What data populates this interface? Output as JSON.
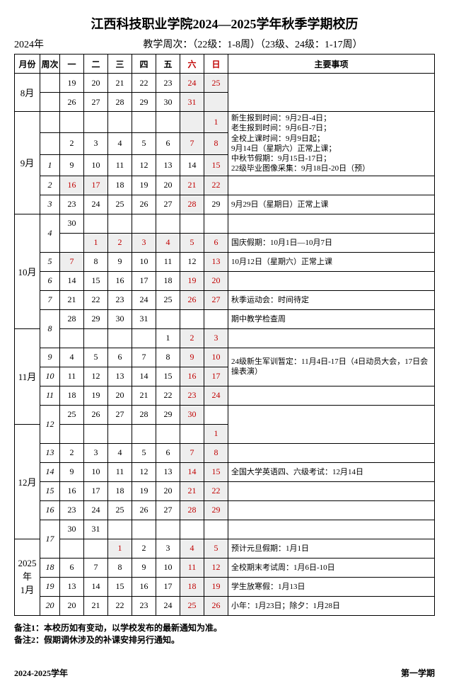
{
  "title": "江西科技职业学院2024—2025学年秋季学期校历",
  "yearLabel": "2024年",
  "subTitle": "教学周次：（22级：1-8周）（23级、24级：1-17周）",
  "headers": {
    "month": "月份",
    "week": "周次",
    "days": [
      "一",
      "二",
      "三",
      "四",
      "五",
      "六",
      "日"
    ],
    "notes": "主要事项"
  },
  "colors": {
    "weekend": "#c00000",
    "shade": "#eeeeee"
  },
  "rows": [
    {
      "month": "8月",
      "mRows": 2,
      "week": "",
      "cells": [
        {
          "t": "19"
        },
        {
          "t": "20"
        },
        {
          "t": "21"
        },
        {
          "t": "22"
        },
        {
          "t": "23"
        },
        {
          "t": "24",
          "red": 1,
          "sh": 1
        },
        {
          "t": "25",
          "red": 1,
          "sh": 1
        }
      ],
      "note": "",
      "nRows": 2
    },
    {
      "week": "",
      "cells": [
        {
          "t": "26"
        },
        {
          "t": "27"
        },
        {
          "t": "28"
        },
        {
          "t": "29"
        },
        {
          "t": "30"
        },
        {
          "t": "31",
          "red": 1,
          "sh": 1
        },
        {
          "t": "",
          "sh": 1
        }
      ]
    },
    {
      "month": "9月",
      "mRows": 5,
      "week": "",
      "cells": [
        {
          "t": ""
        },
        {
          "t": ""
        },
        {
          "t": ""
        },
        {
          "t": ""
        },
        {
          "t": ""
        },
        {
          "t": "",
          "sh": 1
        },
        {
          "t": "1",
          "red": 1,
          "sh": 1
        }
      ],
      "note": "新生报到时间：9月2日-4日；\n老生报到时间：9月6日-7日；\n全校上课时间：9月9日起；\n9月14日（星期六）正常上课；\n中秋节假期：9月15日-17日；\n22级毕业图像采集：9月18日-20日（预）",
      "nRows": 3
    },
    {
      "week": "",
      "cells": [
        {
          "t": "2"
        },
        {
          "t": "3"
        },
        {
          "t": "4"
        },
        {
          "t": "5"
        },
        {
          "t": "6"
        },
        {
          "t": "7",
          "red": 1,
          "sh": 1
        },
        {
          "t": "8",
          "red": 1,
          "sh": 1
        }
      ]
    },
    {
      "week": "1",
      "cells": [
        {
          "t": "9"
        },
        {
          "t": "10"
        },
        {
          "t": "11"
        },
        {
          "t": "12"
        },
        {
          "t": "13"
        },
        {
          "t": "14"
        },
        {
          "t": "15",
          "red": 1,
          "sh": 1
        }
      ]
    },
    {
      "week": "2",
      "cells": [
        {
          "t": "16",
          "red": 1,
          "sh": 1
        },
        {
          "t": "17",
          "red": 1,
          "sh": 1
        },
        {
          "t": "18"
        },
        {
          "t": "19"
        },
        {
          "t": "20"
        },
        {
          "t": "21",
          "red": 1,
          "sh": 1
        },
        {
          "t": "22",
          "red": 1,
          "sh": 1
        }
      ],
      "note": "",
      "nRows": 1
    },
    {
      "week": "3",
      "cells": [
        {
          "t": "23"
        },
        {
          "t": "24"
        },
        {
          "t": "25"
        },
        {
          "t": "26"
        },
        {
          "t": "27"
        },
        {
          "t": "28",
          "red": 1,
          "sh": 1
        },
        {
          "t": "29"
        }
      ],
      "note": "9月29日（星期日）正常上课",
      "nRows": 1
    },
    {
      "month": "10月",
      "mRows": 6,
      "week": "4",
      "wRows": 2,
      "cells": [
        {
          "t": "30"
        },
        {
          "t": ""
        },
        {
          "t": ""
        },
        {
          "t": ""
        },
        {
          "t": ""
        },
        {
          "t": ""
        },
        {
          "t": ""
        }
      ],
      "note": "",
      "nRows": 1
    },
    {
      "cells": [
        {
          "t": ""
        },
        {
          "t": "1",
          "red": 1,
          "sh": 1
        },
        {
          "t": "2",
          "red": 1,
          "sh": 1
        },
        {
          "t": "3",
          "red": 1,
          "sh": 1
        },
        {
          "t": "4",
          "red": 1,
          "sh": 1
        },
        {
          "t": "5",
          "red": 1,
          "sh": 1
        },
        {
          "t": "6",
          "red": 1,
          "sh": 1
        }
      ],
      "note": "国庆假期：10月1日—10月7日",
      "nRows": 1
    },
    {
      "week": "5",
      "cells": [
        {
          "t": "7",
          "red": 1,
          "sh": 1
        },
        {
          "t": "8"
        },
        {
          "t": "9"
        },
        {
          "t": "10"
        },
        {
          "t": "11"
        },
        {
          "t": "12"
        },
        {
          "t": "13",
          "red": 1,
          "sh": 1
        }
      ],
      "note": "10月12日（星期六）正常上课",
      "nRows": 1
    },
    {
      "week": "6",
      "cells": [
        {
          "t": "14"
        },
        {
          "t": "15"
        },
        {
          "t": "16"
        },
        {
          "t": "17"
        },
        {
          "t": "18"
        },
        {
          "t": "19",
          "red": 1,
          "sh": 1
        },
        {
          "t": "20",
          "red": 1,
          "sh": 1
        }
      ],
      "note": "",
      "nRows": 1
    },
    {
      "week": "7",
      "cells": [
        {
          "t": "21"
        },
        {
          "t": "22"
        },
        {
          "t": "23"
        },
        {
          "t": "24"
        },
        {
          "t": "25"
        },
        {
          "t": "26",
          "red": 1,
          "sh": 1
        },
        {
          "t": "27",
          "red": 1,
          "sh": 1
        }
      ],
      "note": "秋季运动会：时间待定",
      "nRows": 1
    },
    {
      "week": "8",
      "wRows": 2,
      "cells": [
        {
          "t": "28"
        },
        {
          "t": "29"
        },
        {
          "t": "30"
        },
        {
          "t": "31"
        },
        {
          "t": ""
        },
        {
          "t": ""
        },
        {
          "t": ""
        }
      ],
      "note": "期中教学检查周",
      "nRows": 1
    },
    {
      "month": "11月",
      "mRows": 5,
      "cells": [
        {
          "t": ""
        },
        {
          "t": ""
        },
        {
          "t": ""
        },
        {
          "t": ""
        },
        {
          "t": "1"
        },
        {
          "t": "2",
          "red": 1,
          "sh": 1
        },
        {
          "t": "3",
          "red": 1,
          "sh": 1
        }
      ],
      "note": "",
      "nRows": 1
    },
    {
      "week": "9",
      "cells": [
        {
          "t": "4"
        },
        {
          "t": "5"
        },
        {
          "t": "6"
        },
        {
          "t": "7"
        },
        {
          "t": "8"
        },
        {
          "t": "9",
          "red": 1,
          "sh": 1
        },
        {
          "t": "10",
          "red": 1,
          "sh": 1
        }
      ],
      "note": "24级新生军训暂定：11月4日-17日（4日动员大会，17日会操表演）",
      "nRows": 2
    },
    {
      "week": "10",
      "cells": [
        {
          "t": "11"
        },
        {
          "t": "12"
        },
        {
          "t": "13"
        },
        {
          "t": "14"
        },
        {
          "t": "15"
        },
        {
          "t": "16",
          "red": 1,
          "sh": 1
        },
        {
          "t": "17",
          "red": 1,
          "sh": 1
        }
      ]
    },
    {
      "week": "11",
      "cells": [
        {
          "t": "18"
        },
        {
          "t": "19"
        },
        {
          "t": "20"
        },
        {
          "t": "21"
        },
        {
          "t": "22"
        },
        {
          "t": "23",
          "red": 1,
          "sh": 1
        },
        {
          "t": "24",
          "red": 1,
          "sh": 1
        }
      ],
      "note": "",
      "nRows": 1
    },
    {
      "week": "12",
      "wRows": 2,
      "cells": [
        {
          "t": "25"
        },
        {
          "t": "26"
        },
        {
          "t": "27"
        },
        {
          "t": "28"
        },
        {
          "t": "29"
        },
        {
          "t": "30",
          "red": 1,
          "sh": 1
        },
        {
          "t": ""
        }
      ],
      "note": "",
      "nRows": 2
    },
    {
      "month": "12月",
      "mRows": 6,
      "cells": [
        {
          "t": ""
        },
        {
          "t": ""
        },
        {
          "t": ""
        },
        {
          "t": ""
        },
        {
          "t": ""
        },
        {
          "t": ""
        },
        {
          "t": "1",
          "red": 1,
          "sh": 1
        }
      ]
    },
    {
      "week": "13",
      "cells": [
        {
          "t": "2"
        },
        {
          "t": "3"
        },
        {
          "t": "4"
        },
        {
          "t": "5"
        },
        {
          "t": "6"
        },
        {
          "t": "7",
          "red": 1,
          "sh": 1
        },
        {
          "t": "8",
          "red": 1,
          "sh": 1
        }
      ],
      "note": "",
      "nRows": 1
    },
    {
      "week": "14",
      "cells": [
        {
          "t": "9"
        },
        {
          "t": "10"
        },
        {
          "t": "11"
        },
        {
          "t": "12"
        },
        {
          "t": "13"
        },
        {
          "t": "14",
          "red": 1,
          "sh": 1
        },
        {
          "t": "15",
          "red": 1,
          "sh": 1
        }
      ],
      "note": "全国大学英语四、六级考试：12月14日",
      "nRows": 1
    },
    {
      "week": "15",
      "cells": [
        {
          "t": "16"
        },
        {
          "t": "17"
        },
        {
          "t": "18"
        },
        {
          "t": "19"
        },
        {
          "t": "20"
        },
        {
          "t": "21",
          "red": 1,
          "sh": 1
        },
        {
          "t": "22",
          "red": 1,
          "sh": 1
        }
      ],
      "note": "",
      "nRows": 1
    },
    {
      "week": "16",
      "cells": [
        {
          "t": "23"
        },
        {
          "t": "24"
        },
        {
          "t": "25"
        },
        {
          "t": "26"
        },
        {
          "t": "27"
        },
        {
          "t": "28",
          "red": 1,
          "sh": 1
        },
        {
          "t": "29",
          "red": 1,
          "sh": 1
        }
      ],
      "note": "",
      "nRows": 1
    },
    {
      "week": "17",
      "wRows": 2,
      "cells": [
        {
          "t": "30"
        },
        {
          "t": "31"
        },
        {
          "t": ""
        },
        {
          "t": ""
        },
        {
          "t": ""
        },
        {
          "t": ""
        },
        {
          "t": ""
        }
      ],
      "note": "",
      "nRows": 1
    },
    {
      "month": "2025年\n1月",
      "mRows": 5,
      "cells": [
        {
          "t": ""
        },
        {
          "t": ""
        },
        {
          "t": "1",
          "red": 1,
          "sh": 1
        },
        {
          "t": "2"
        },
        {
          "t": "3"
        },
        {
          "t": "4",
          "red": 1,
          "sh": 1
        },
        {
          "t": "5",
          "red": 1,
          "sh": 1
        }
      ],
      "note": "预计元旦假期：1月1日",
      "nRows": 1
    },
    {
      "week": "18",
      "cells": [
        {
          "t": "6"
        },
        {
          "t": "7"
        },
        {
          "t": "8"
        },
        {
          "t": "9"
        },
        {
          "t": "10"
        },
        {
          "t": "11",
          "red": 1,
          "sh": 1
        },
        {
          "t": "12",
          "red": 1,
          "sh": 1
        }
      ],
      "note": "全校期末考试周：1月6日-10日",
      "nRows": 1
    },
    {
      "week": "19",
      "cells": [
        {
          "t": "13"
        },
        {
          "t": "14"
        },
        {
          "t": "15"
        },
        {
          "t": "16"
        },
        {
          "t": "17"
        },
        {
          "t": "18",
          "red": 1,
          "sh": 1
        },
        {
          "t": "19",
          "red": 1,
          "sh": 1
        }
      ],
      "note": "学生放寒假：1月13日",
      "nRows": 1
    },
    {
      "week": "20",
      "cells": [
        {
          "t": "20"
        },
        {
          "t": "21"
        },
        {
          "t": "22"
        },
        {
          "t": "23"
        },
        {
          "t": "24"
        },
        {
          "t": "25",
          "red": 1,
          "sh": 1
        },
        {
          "t": "26",
          "red": 1,
          "sh": 1
        }
      ],
      "note": "小年：1月23日；除夕：1月28日",
      "nRows": 1
    }
  ],
  "footnotes": [
    "备注1：本校历如有变动，以学校发布的最新通知为准。",
    "备注2：假期调休涉及的补课安排另行通知。"
  ],
  "footer": {
    "left": "2024-2025学年",
    "right": "第一学期"
  }
}
